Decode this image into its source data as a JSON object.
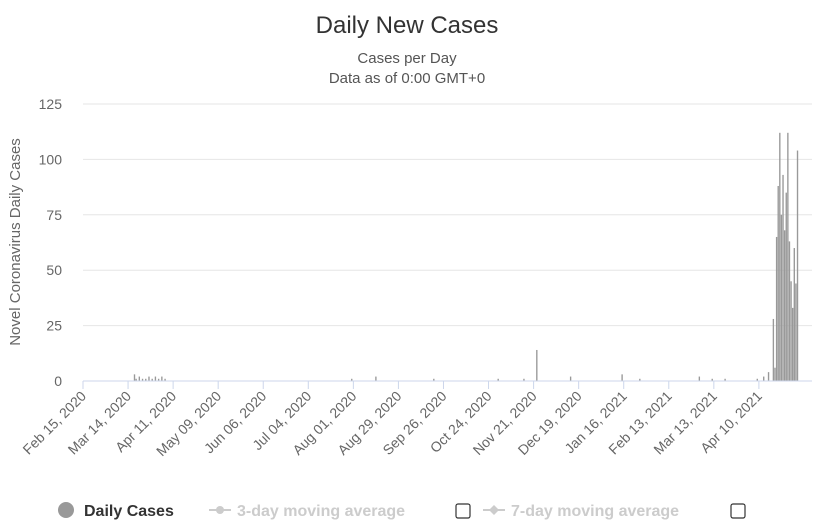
{
  "chart_data": {
    "type": "bar",
    "title": "Daily New Cases",
    "subtitle_lines": [
      "Cases per Day",
      "Data as of 0:00 GMT+0"
    ],
    "ylabel": "Novel Coronavirus Daily Cases",
    "ylim": [
      0,
      125
    ],
    "y_ticks": [
      0,
      25,
      50,
      75,
      100,
      125
    ],
    "grid": true,
    "legend_position": "bottom",
    "x_start": "2020-02-15",
    "x_end": "2021-05-13",
    "x_tick_labels": [
      {
        "date": "2020-02-15",
        "label": "Feb 15, 2020"
      },
      {
        "date": "2020-03-14",
        "label": "Mar 14, 2020"
      },
      {
        "date": "2020-04-11",
        "label": "Apr 11, 2020"
      },
      {
        "date": "2020-05-09",
        "label": "May 09, 2020"
      },
      {
        "date": "2020-06-06",
        "label": "Jun 06, 2020"
      },
      {
        "date": "2020-07-04",
        "label": "Jul 04, 2020"
      },
      {
        "date": "2020-08-01",
        "label": "Aug 01, 2020"
      },
      {
        "date": "2020-08-29",
        "label": "Aug 29, 2020"
      },
      {
        "date": "2020-09-26",
        "label": "Sep 26, 2020"
      },
      {
        "date": "2020-10-24",
        "label": "Oct 24, 2020"
      },
      {
        "date": "2020-11-21",
        "label": "Nov 21, 2020"
      },
      {
        "date": "2020-12-19",
        "label": "Dec 19, 2020"
      },
      {
        "date": "2021-01-16",
        "label": "Jan 16, 2021"
      },
      {
        "date": "2021-02-13",
        "label": "Feb 13, 2021"
      },
      {
        "date": "2021-03-13",
        "label": "Mar 13, 2021"
      },
      {
        "date": "2021-04-10",
        "label": "Apr 10, 2021"
      }
    ],
    "series": [
      {
        "name": "Daily Cases",
        "color": "#999999",
        "points": [
          [
            "2020-03-18",
            3
          ],
          [
            "2020-03-19",
            1
          ],
          [
            "2020-03-21",
            2
          ],
          [
            "2020-03-23",
            1
          ],
          [
            "2020-03-25",
            1
          ],
          [
            "2020-03-27",
            2
          ],
          [
            "2020-03-29",
            1
          ],
          [
            "2020-03-31",
            2
          ],
          [
            "2020-04-02",
            1
          ],
          [
            "2020-04-04",
            2
          ],
          [
            "2020-04-06",
            1
          ],
          [
            "2020-07-31",
            1
          ],
          [
            "2020-08-15",
            2
          ],
          [
            "2020-09-20",
            1
          ],
          [
            "2020-10-30",
            1
          ],
          [
            "2020-11-15",
            1
          ],
          [
            "2020-11-23",
            14
          ],
          [
            "2020-12-14",
            2
          ],
          [
            "2021-01-15",
            3
          ],
          [
            "2021-01-26",
            1
          ],
          [
            "2021-03-04",
            2
          ],
          [
            "2021-03-12",
            1
          ],
          [
            "2021-03-20",
            1
          ],
          [
            "2021-04-09",
            1
          ],
          [
            "2021-04-13",
            2
          ],
          [
            "2021-04-16",
            4
          ],
          [
            "2021-04-19",
            28
          ],
          [
            "2021-04-20",
            6
          ],
          [
            "2021-04-21",
            65
          ],
          [
            "2021-04-22",
            88
          ],
          [
            "2021-04-23",
            112
          ],
          [
            "2021-04-24",
            75
          ],
          [
            "2021-04-25",
            93
          ],
          [
            "2021-04-26",
            68
          ],
          [
            "2021-04-27",
            85
          ],
          [
            "2021-04-28",
            112
          ],
          [
            "2021-04-29",
            63
          ],
          [
            "2021-04-30",
            45
          ],
          [
            "2021-05-01",
            33
          ],
          [
            "2021-05-02",
            60
          ],
          [
            "2021-05-03",
            44
          ],
          [
            "2021-05-04",
            104
          ]
        ]
      }
    ]
  },
  "legend": {
    "daily_label": "Daily Cases",
    "daily_color": "#999999",
    "ma3_label": "3-day moving average",
    "ma7_label": "7-day moving average",
    "inactive_color": "#cccccc"
  }
}
